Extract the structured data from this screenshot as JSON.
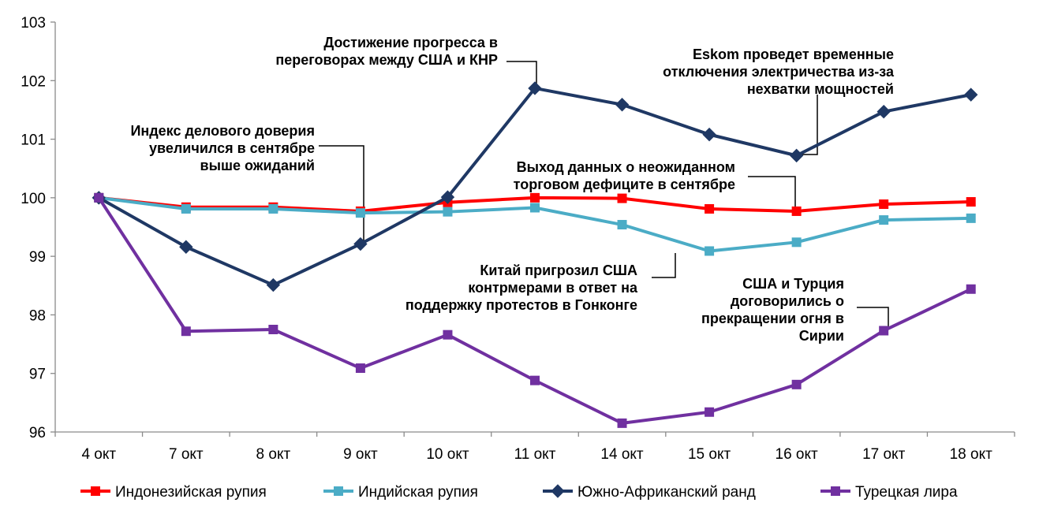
{
  "chart_data": {
    "type": "line",
    "categories": [
      "4 окт",
      "7 окт",
      "8 окт",
      "9 окт",
      "10 окт",
      "11 окт",
      "14 окт",
      "15 окт",
      "16 окт",
      "17 окт",
      "18 окт"
    ],
    "ylim": [
      96,
      103
    ],
    "yticks": [
      "96",
      "97",
      "98",
      "99",
      "100",
      "101",
      "102",
      "103"
    ],
    "grid": false,
    "legend_position": "bottom",
    "series": [
      {
        "name": "Индонезийская рупия",
        "color": "#ff0000",
        "marker": "square",
        "values": [
          100.0,
          99.84,
          99.84,
          99.77,
          99.92,
          100.0,
          99.99,
          99.81,
          99.77,
          99.89,
          99.93
        ]
      },
      {
        "name": "Индийская рупия",
        "color": "#4bacc6",
        "marker": "square",
        "values": [
          100.0,
          99.81,
          99.81,
          99.74,
          99.76,
          99.83,
          99.54,
          99.09,
          99.24,
          99.62,
          99.65
        ]
      },
      {
        "name": "Южно-Африканский ранд",
        "color": "#1f3864",
        "marker": "diamond",
        "values": [
          100.0,
          99.16,
          98.51,
          99.21,
          100.01,
          101.87,
          101.59,
          101.08,
          100.72,
          101.47,
          101.76
        ]
      },
      {
        "name": "Турецкая лира",
        "color": "#7030a0",
        "marker": "square",
        "values": [
          100.0,
          97.72,
          97.75,
          97.09,
          97.66,
          96.88,
          96.15,
          96.34,
          96.81,
          97.73,
          98.44
        ]
      }
    ],
    "annotations": [
      {
        "lines": [
          "Индекс делового доверия",
          "увеличился в сентябре",
          "выше ожиданий"
        ]
      },
      {
        "lines": [
          "Достижение прогресса в",
          "переговорах между США и КНР"
        ]
      },
      {
        "lines": [
          "Eskom проведет временные",
          "отключения электричества из-за",
          "нехватки мощностей"
        ]
      },
      {
        "lines": [
          "Выход данных о неожиданном",
          "торговом дефиците в сентябре"
        ]
      },
      {
        "lines": [
          "Китай пригрозил США",
          "контрмерами в ответ на",
          "поддержку протестов в Гонконге"
        ]
      },
      {
        "lines": [
          "США и Турция",
          "договорились о",
          "прекращении огня в",
          "Сирии"
        ]
      }
    ]
  }
}
